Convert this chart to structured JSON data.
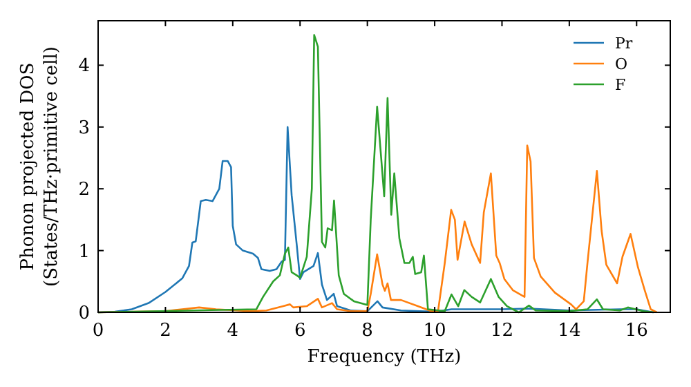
{
  "chart_data": {
    "type": "line",
    "xlabel": "Frequency (THz)",
    "ylabel": "Phonon projected DOS\n(States/THz·primitive cell)",
    "xlim": [
      0,
      17
    ],
    "ylim": [
      0,
      4.72
    ],
    "xticks": [
      0,
      2,
      4,
      6,
      8,
      10,
      12,
      14,
      16
    ],
    "yticks": [
      0,
      1,
      2,
      3,
      4
    ],
    "legend": "top right",
    "grid": false,
    "series": [
      {
        "name": "Pr",
        "color": "#1f77b4",
        "x": [
          0,
          0.5,
          1,
          1.5,
          2,
          2.5,
          2.7,
          2.8,
          2.9,
          3.05,
          3.2,
          3.4,
          3.6,
          3.7,
          3.85,
          3.95,
          4.0,
          4.1,
          4.3,
          4.6,
          4.75,
          4.85,
          5.1,
          5.3,
          5.45,
          5.55,
          5.63,
          5.75,
          5.9,
          6.0,
          6.1,
          6.25,
          6.4,
          6.53,
          6.65,
          6.8,
          7.0,
          7.1,
          7.5,
          8.0,
          8.15,
          8.3,
          8.45,
          9.0,
          10.0,
          10.5,
          12,
          12.8,
          14,
          15.5,
          16,
          16.5
        ],
        "values": [
          0,
          0.01,
          0.05,
          0.15,
          0.33,
          0.55,
          0.75,
          1.13,
          1.15,
          1.8,
          1.82,
          1.8,
          2.0,
          2.45,
          2.45,
          2.35,
          1.4,
          1.1,
          1.0,
          0.95,
          0.88,
          0.7,
          0.67,
          0.7,
          0.82,
          0.85,
          3.0,
          1.9,
          1.1,
          0.54,
          0.65,
          0.7,
          0.75,
          0.96,
          0.45,
          0.2,
          0.3,
          0.1,
          0.03,
          0.02,
          0.1,
          0.18,
          0.08,
          0.03,
          0.01,
          0.05,
          0.05,
          0.06,
          0.03,
          0.05,
          0.05,
          0
        ]
      },
      {
        "name": "O",
        "color": "#ff7f0e",
        "x": [
          0,
          2,
          2.5,
          3.0,
          3.5,
          4.5,
          5.0,
          5.5,
          5.7,
          5.8,
          6.2,
          6.53,
          6.65,
          6.95,
          7.1,
          7.5,
          8.0,
          8.1,
          8.29,
          8.45,
          8.52,
          8.6,
          8.7,
          9.0,
          9.5,
          9.9,
          10.1,
          10.3,
          10.49,
          10.6,
          10.68,
          10.89,
          11.1,
          11.35,
          11.46,
          11.67,
          11.83,
          11.93,
          12.07,
          12.32,
          12.67,
          12.75,
          12.85,
          12.95,
          13.15,
          13.57,
          14.05,
          14.2,
          14.43,
          14.54,
          14.82,
          14.96,
          15.1,
          15.42,
          15.58,
          15.82,
          16.04,
          16.24,
          16.42,
          16.6
        ],
        "values": [
          0,
          0.02,
          0.05,
          0.08,
          0.05,
          0.02,
          0.03,
          0.1,
          0.13,
          0.08,
          0.1,
          0.22,
          0.08,
          0.15,
          0.05,
          0.02,
          0.02,
          0.3,
          0.94,
          0.45,
          0.35,
          0.47,
          0.2,
          0.2,
          0.1,
          0.02,
          0.02,
          0.8,
          1.66,
          1.5,
          0.85,
          1.47,
          1.1,
          0.8,
          1.62,
          2.25,
          0.92,
          0.8,
          0.54,
          0.36,
          0.25,
          2.7,
          2.44,
          0.88,
          0.58,
          0.32,
          0.13,
          0.05,
          0.18,
          0.8,
          2.29,
          1.32,
          0.77,
          0.47,
          0.9,
          1.27,
          0.73,
          0.36,
          0.05,
          0
        ]
      },
      {
        "name": "F",
        "color": "#2ca02c",
        "x": [
          0,
          4.7,
          4.9,
          5.2,
          5.4,
          5.55,
          5.65,
          5.75,
          5.9,
          6.0,
          6.2,
          6.35,
          6.42,
          6.53,
          6.65,
          6.75,
          6.82,
          6.95,
          7.01,
          7.15,
          7.3,
          7.6,
          8.0,
          8.1,
          8.29,
          8.5,
          8.6,
          8.71,
          8.8,
          8.95,
          9.1,
          9.25,
          9.35,
          9.42,
          9.6,
          9.68,
          9.8,
          10.3,
          10.5,
          10.7,
          10.88,
          11.1,
          11.35,
          11.67,
          11.9,
          12.15,
          12.5,
          12.8,
          13.0,
          14.0,
          14.54,
          14.82,
          15.0,
          15.5,
          15.74,
          16.2,
          16.5
        ],
        "values": [
          0,
          0.05,
          0.25,
          0.5,
          0.6,
          0.95,
          1.05,
          0.65,
          0.6,
          0.56,
          0.9,
          2.0,
          4.49,
          4.3,
          1.14,
          1.05,
          1.36,
          1.33,
          1.81,
          0.6,
          0.3,
          0.18,
          0.12,
          1.5,
          3.33,
          1.88,
          3.47,
          1.58,
          2.25,
          1.2,
          0.8,
          0.8,
          0.9,
          0.62,
          0.65,
          0.92,
          0.05,
          0.02,
          0.29,
          0.1,
          0.36,
          0.25,
          0.16,
          0.54,
          0.25,
          0.1,
          0.0,
          0.11,
          0.03,
          0.02,
          0.05,
          0.21,
          0.05,
          0.03,
          0.08,
          0.02,
          0
        ]
      }
    ]
  }
}
